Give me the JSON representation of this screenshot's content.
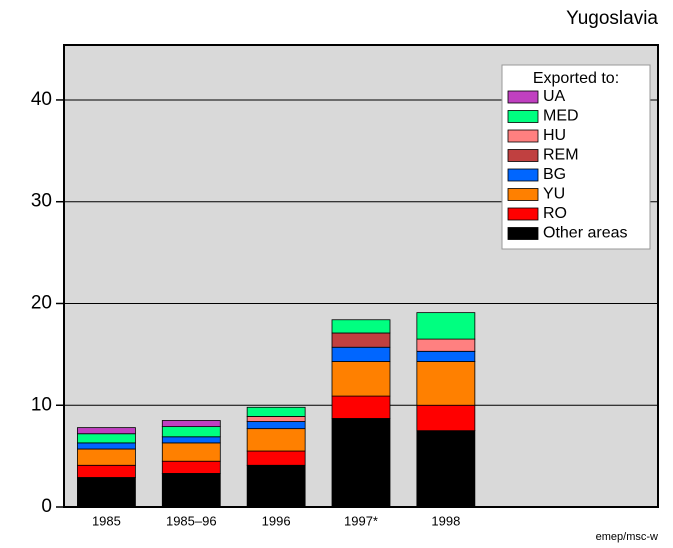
{
  "chart_data": {
    "type": "stacked-bar",
    "title": "Yugoslavia",
    "footer": "emep/msc-w",
    "legend_title": "Exported to:",
    "legend_position": "upper right",
    "categories": [
      "1985",
      "1985–96",
      "1996",
      "1997*",
      "1998"
    ],
    "series": [
      {
        "name": "Other areas",
        "color": "#000000",
        "values": [
          2.9,
          3.3,
          4.1,
          8.7,
          7.5
        ]
      },
      {
        "name": "RO",
        "color": "#ff0000",
        "values": [
          1.2,
          1.2,
          1.4,
          2.2,
          2.5
        ]
      },
      {
        "name": "YU",
        "color": "#ff8000",
        "values": [
          1.6,
          1.8,
          2.2,
          3.4,
          4.3
        ]
      },
      {
        "name": "BG",
        "color": "#0066ff",
        "values": [
          0.6,
          0.6,
          0.7,
          1.4,
          1.0
        ]
      },
      {
        "name": "REM",
        "color": "#c04040",
        "values": [
          0,
          0,
          0,
          1.4,
          0
        ]
      },
      {
        "name": "HU",
        "color": "#ff8080",
        "values": [
          0,
          0,
          0.5,
          0,
          1.2
        ]
      },
      {
        "name": "MED",
        "color": "#00ff80",
        "values": [
          0.9,
          1.0,
          0.9,
          1.3,
          2.6
        ]
      },
      {
        "name": "UA",
        "color": "#c040c0",
        "values": [
          0.6,
          0.6,
          0,
          0,
          0
        ]
      }
    ],
    "ylim": [
      0,
      45.4
    ],
    "yticks": [
      0,
      10,
      20,
      30,
      40
    ],
    "grid": true
  }
}
